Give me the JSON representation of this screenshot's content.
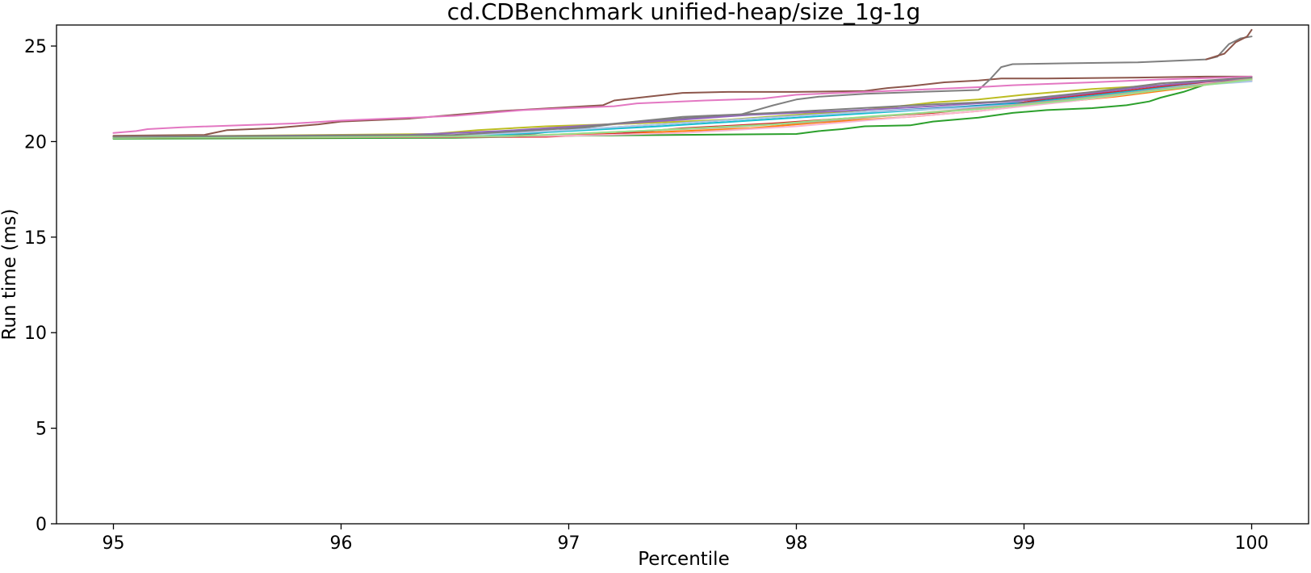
{
  "chart_data": {
    "type": "line",
    "title": "cd.CDBenchmark unified-heap/size_1g-1g",
    "xlabel": "Percentile",
    "ylabel": "Run time (ms)",
    "xlim": [
      94.75,
      100.25
    ],
    "ylim": [
      0,
      26.1
    ],
    "xticks": [
      95,
      96,
      97,
      98,
      99,
      100
    ],
    "yticks": [
      0,
      5,
      10,
      15,
      20,
      25
    ],
    "grid": false,
    "legend": "none",
    "series": [
      {
        "color": "#8c564b",
        "points": [
          [
            95,
            20.3
          ],
          [
            95.4,
            20.35
          ],
          [
            95.5,
            20.6
          ],
          [
            95.7,
            20.7
          ],
          [
            95.9,
            20.9
          ],
          [
            96.0,
            21.05
          ],
          [
            96.3,
            21.2
          ],
          [
            96.5,
            21.4
          ],
          [
            96.7,
            21.6
          ],
          [
            97.0,
            21.8
          ],
          [
            97.15,
            21.9
          ],
          [
            97.2,
            22.15
          ],
          [
            97.35,
            22.35
          ],
          [
            97.5,
            22.55
          ],
          [
            97.7,
            22.6
          ],
          [
            98.0,
            22.6
          ],
          [
            98.3,
            22.65
          ],
          [
            98.4,
            22.8
          ],
          [
            98.5,
            22.9
          ],
          [
            98.65,
            23.1
          ],
          [
            98.8,
            23.2
          ],
          [
            98.9,
            23.3
          ],
          [
            99.1,
            23.3
          ],
          [
            99.5,
            23.35
          ],
          [
            99.8,
            23.4
          ],
          [
            100,
            23.4
          ]
        ]
      },
      {
        "color": "#7f7f7f",
        "points": [
          [
            95,
            20.25
          ],
          [
            96.0,
            20.25
          ],
          [
            96.8,
            20.35
          ],
          [
            97.3,
            21.05
          ],
          [
            97.6,
            21.3
          ],
          [
            97.75,
            21.4
          ],
          [
            97.9,
            21.9
          ],
          [
            98.0,
            22.2
          ],
          [
            98.1,
            22.35
          ],
          [
            98.3,
            22.5
          ],
          [
            98.8,
            22.7
          ],
          [
            98.85,
            23.25
          ],
          [
            98.9,
            23.9
          ],
          [
            98.95,
            24.05
          ],
          [
            99.2,
            24.1
          ],
          [
            99.5,
            24.15
          ],
          [
            99.8,
            24.3
          ],
          [
            99.85,
            24.45
          ],
          [
            99.9,
            25.1
          ],
          [
            99.95,
            25.4
          ],
          [
            100,
            25.5
          ]
        ]
      },
      {
        "color": "#8c564b",
        "points": [
          [
            99.8,
            24.3
          ],
          [
            99.88,
            24.6
          ],
          [
            99.93,
            25.2
          ],
          [
            99.98,
            25.5
          ],
          [
            100,
            25.85
          ]
        ]
      },
      {
        "color": "#e377c2",
        "points": [
          [
            95,
            20.45
          ],
          [
            95.1,
            20.55
          ],
          [
            95.15,
            20.65
          ],
          [
            95.3,
            20.75
          ],
          [
            95.8,
            20.95
          ],
          [
            96.0,
            21.1
          ],
          [
            96.5,
            21.35
          ],
          [
            96.8,
            21.65
          ],
          [
            97.2,
            21.85
          ],
          [
            97.3,
            22.0
          ],
          [
            97.6,
            22.15
          ],
          [
            97.85,
            22.25
          ],
          [
            98.0,
            22.45
          ],
          [
            98.4,
            22.65
          ],
          [
            98.8,
            22.85
          ],
          [
            98.95,
            22.95
          ],
          [
            99.3,
            23.1
          ],
          [
            99.6,
            23.25
          ],
          [
            100,
            23.4
          ]
        ]
      },
      {
        "color": "#2ca02c",
        "points": [
          [
            95,
            20.15
          ],
          [
            96.5,
            20.2
          ],
          [
            97.0,
            20.3
          ],
          [
            97.5,
            20.35
          ],
          [
            98.0,
            20.4
          ],
          [
            98.1,
            20.55
          ],
          [
            98.2,
            20.65
          ],
          [
            98.3,
            20.8
          ],
          [
            98.5,
            20.85
          ],
          [
            98.6,
            21.05
          ],
          [
            98.8,
            21.25
          ],
          [
            98.95,
            21.5
          ],
          [
            99.1,
            21.65
          ],
          [
            99.3,
            21.75
          ],
          [
            99.45,
            21.9
          ],
          [
            99.55,
            22.1
          ],
          [
            99.6,
            22.3
          ],
          [
            99.7,
            22.6
          ],
          [
            99.8,
            23.0
          ],
          [
            99.9,
            23.15
          ],
          [
            100,
            23.2
          ]
        ]
      },
      {
        "color": "#bcbd22",
        "points": [
          [
            95,
            20.25
          ],
          [
            96.4,
            20.4
          ],
          [
            96.6,
            20.6
          ],
          [
            96.9,
            20.8
          ],
          [
            97.3,
            20.95
          ],
          [
            97.7,
            21.15
          ],
          [
            98.0,
            21.4
          ],
          [
            98.3,
            21.65
          ],
          [
            98.6,
            22.05
          ],
          [
            98.8,
            22.2
          ],
          [
            99.0,
            22.45
          ],
          [
            99.3,
            22.75
          ],
          [
            99.6,
            22.95
          ],
          [
            99.8,
            23.15
          ],
          [
            100,
            23.2
          ]
        ]
      },
      {
        "color": "#1f77b4",
        "points": [
          [
            95,
            20.2
          ],
          [
            96.4,
            20.3
          ],
          [
            96.8,
            20.45
          ],
          [
            97.2,
            20.75
          ],
          [
            97.6,
            21.05
          ],
          [
            98.0,
            21.35
          ],
          [
            98.3,
            21.55
          ],
          [
            98.7,
            21.8
          ],
          [
            99.0,
            22.05
          ],
          [
            99.3,
            22.4
          ],
          [
            99.6,
            22.75
          ],
          [
            99.8,
            23.05
          ],
          [
            100,
            23.3
          ]
        ]
      },
      {
        "color": "#ff7f0e",
        "points": [
          [
            95,
            20.2
          ],
          [
            96.8,
            20.25
          ],
          [
            97.3,
            20.45
          ],
          [
            97.8,
            20.7
          ],
          [
            98.1,
            21.0
          ],
          [
            98.5,
            21.3
          ],
          [
            98.8,
            21.6
          ],
          [
            99.1,
            22.0
          ],
          [
            99.4,
            22.35
          ],
          [
            99.7,
            22.8
          ],
          [
            99.9,
            23.15
          ],
          [
            100,
            23.2
          ]
        ]
      },
      {
        "color": "#d62728",
        "points": [
          [
            95,
            20.2
          ],
          [
            96.9,
            20.25
          ],
          [
            97.2,
            20.4
          ],
          [
            97.5,
            20.7
          ],
          [
            97.9,
            20.95
          ],
          [
            98.2,
            21.2
          ],
          [
            98.6,
            21.5
          ],
          [
            98.9,
            21.85
          ],
          [
            99.1,
            22.25
          ],
          [
            99.4,
            22.6
          ],
          [
            99.7,
            23.0
          ],
          [
            100,
            23.3
          ]
        ]
      },
      {
        "color": "#9467bd",
        "points": [
          [
            95,
            20.25
          ],
          [
            96.3,
            20.35
          ],
          [
            96.7,
            20.55
          ],
          [
            97.1,
            20.85
          ],
          [
            97.5,
            21.15
          ],
          [
            97.8,
            21.4
          ],
          [
            98.2,
            21.6
          ],
          [
            98.6,
            21.85
          ],
          [
            99.0,
            22.15
          ],
          [
            99.3,
            22.55
          ],
          [
            99.6,
            22.95
          ],
          [
            99.9,
            23.25
          ],
          [
            100,
            23.3
          ]
        ]
      },
      {
        "color": "#17becf",
        "points": [
          [
            95,
            20.2
          ],
          [
            96.6,
            20.3
          ],
          [
            97.0,
            20.55
          ],
          [
            97.4,
            20.8
          ],
          [
            97.8,
            21.1
          ],
          [
            98.2,
            21.4
          ],
          [
            98.6,
            21.7
          ],
          [
            99.0,
            22.0
          ],
          [
            99.3,
            22.4
          ],
          [
            99.6,
            22.8
          ],
          [
            99.85,
            23.1
          ],
          [
            100,
            23.25
          ]
        ]
      },
      {
        "color": "#f7b6d2",
        "points": [
          [
            95,
            20.2
          ],
          [
            97.0,
            20.3
          ],
          [
            97.5,
            20.45
          ],
          [
            98.0,
            20.8
          ],
          [
            98.4,
            21.2
          ],
          [
            98.8,
            21.6
          ],
          [
            99.2,
            22.1
          ],
          [
            99.5,
            22.55
          ],
          [
            99.8,
            23.05
          ],
          [
            100,
            23.2
          ]
        ]
      },
      {
        "color": "#aec7e8",
        "points": [
          [
            95,
            20.2
          ],
          [
            96.5,
            20.3
          ],
          [
            97.0,
            20.6
          ],
          [
            97.4,
            20.9
          ],
          [
            97.8,
            21.2
          ],
          [
            98.3,
            21.55
          ],
          [
            98.7,
            21.75
          ],
          [
            99.0,
            21.95
          ],
          [
            99.4,
            22.45
          ],
          [
            99.7,
            22.9
          ],
          [
            100,
            23.15
          ]
        ]
      },
      {
        "color": "#c49c94",
        "points": [
          [
            95,
            20.2
          ],
          [
            96.7,
            20.25
          ],
          [
            97.2,
            20.5
          ],
          [
            97.7,
            20.75
          ],
          [
            98.1,
            21.05
          ],
          [
            98.5,
            21.45
          ],
          [
            98.9,
            21.85
          ],
          [
            99.2,
            22.2
          ],
          [
            99.5,
            22.6
          ],
          [
            99.8,
            23.0
          ],
          [
            100,
            23.3
          ]
        ]
      },
      {
        "color": "#98df8a",
        "points": [
          [
            95,
            20.2
          ],
          [
            96.8,
            20.3
          ],
          [
            97.3,
            20.55
          ],
          [
            97.9,
            20.9
          ],
          [
            98.3,
            21.3
          ],
          [
            98.8,
            21.7
          ],
          [
            99.2,
            22.15
          ],
          [
            99.6,
            22.7
          ],
          [
            99.9,
            23.1
          ],
          [
            100,
            23.25
          ]
        ]
      },
      {
        "color": "#7f7f7f",
        "points": [
          [
            95,
            20.25
          ],
          [
            96.5,
            20.35
          ],
          [
            97.0,
            20.7
          ],
          [
            97.5,
            21.3
          ],
          [
            97.9,
            21.5
          ],
          [
            98.2,
            21.7
          ],
          [
            98.6,
            21.95
          ],
          [
            98.9,
            22.1
          ],
          [
            99.3,
            22.6
          ],
          [
            99.6,
            23.05
          ],
          [
            100,
            23.35
          ]
        ]
      }
    ]
  }
}
